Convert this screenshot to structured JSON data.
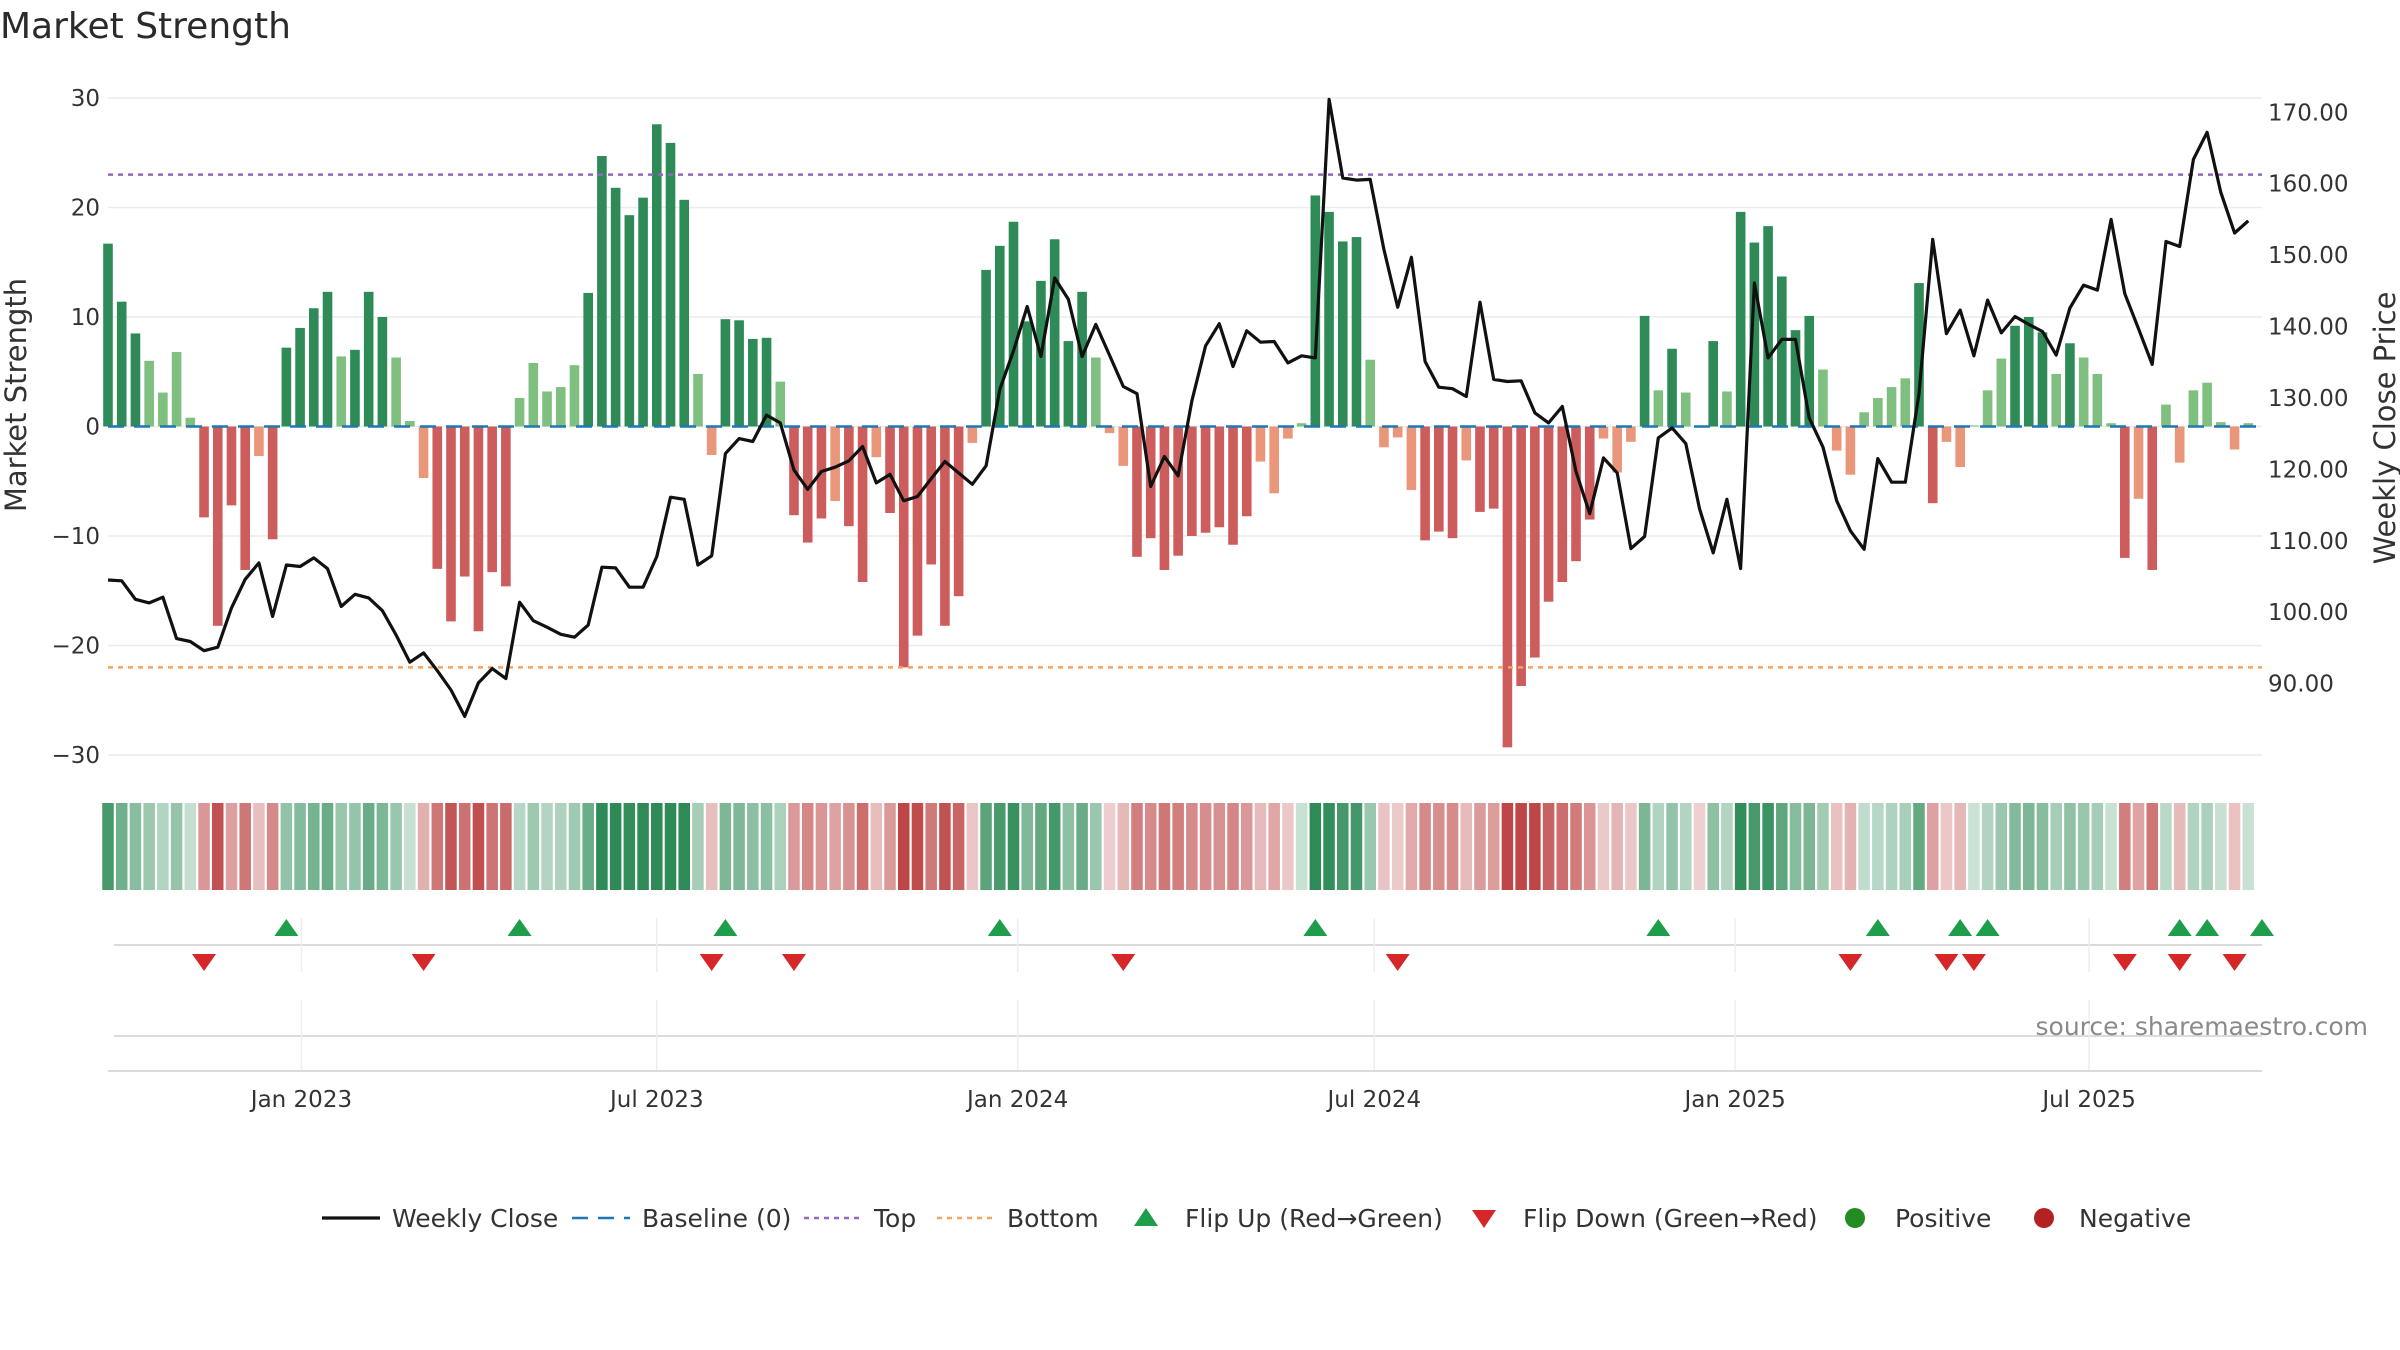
{
  "chart_data": {
    "type": "bar",
    "title": "Market Strength",
    "ylabel_left": "Market Strength",
    "ylabel_right": "Weekly Close Price",
    "ylim_left": [
      -30,
      30
    ],
    "ylim_right": [
      80,
      172
    ],
    "yticks_left": [
      30,
      20,
      10,
      0,
      -10,
      -20,
      -30
    ],
    "ytick_labels_left": [
      "30",
      "20",
      "10",
      "0",
      "−10",
      "−20",
      "−30"
    ],
    "yticks_right": [
      170,
      160,
      150,
      140,
      130,
      120,
      110,
      100,
      90
    ],
    "ytick_labels_right": [
      "170.00",
      "160.00",
      "150.00",
      "140.00",
      "130.00",
      "120.00",
      "110.00",
      "100.00",
      "90.00"
    ],
    "x_range_weeks": [
      0,
      157
    ],
    "date_ticks": [
      {
        "label": "Jan 2023",
        "week": 14.1
      },
      {
        "label": "Jul 2023",
        "week": 40
      },
      {
        "label": "Jan 2024",
        "week": 66.3
      },
      {
        "label": "Jul 2024",
        "week": 92.3
      },
      {
        "label": "Jan 2025",
        "week": 118.6
      },
      {
        "label": "Jul 2025",
        "week": 144.4
      }
    ],
    "top_line": 23,
    "bottom_line": -22,
    "baseline": 0,
    "strength": [
      16.7,
      11.4,
      8.5,
      6,
      3.1,
      6.8,
      0.8,
      -8.3,
      -18.2,
      -7.2,
      -13.1,
      -2.7,
      -10.3,
      7.2,
      9,
      10.8,
      12.3,
      6.4,
      7,
      12.3,
      10,
      6.3,
      0.5,
      -4.7,
      -13,
      -17.8,
      -13.7,
      -18.7,
      -13.3,
      -14.6,
      2.6,
      5.8,
      3.2,
      3.6,
      5.6,
      12.2,
      24.7,
      21.8,
      19.3,
      20.9,
      27.6,
      25.9,
      20.7,
      4.8,
      -2.6,
      9.8,
      9.7,
      8,
      8.1,
      4.1,
      -8.1,
      -10.6,
      -8.4,
      -6.8,
      -9.1,
      -14.2,
      -2.8,
      -7.9,
      -22,
      -19.1,
      -12.6,
      -18.2,
      -15.5,
      -1.5,
      14.3,
      16.5,
      18.7,
      9.6,
      13.3,
      17.1,
      7.8,
      12.3,
      6.3,
      -0.6,
      -3.6,
      -11.9,
      -10.2,
      -13.1,
      -11.8,
      -10,
      -9.7,
      -9.2,
      -10.8,
      -8.2,
      -3.2,
      -6.1,
      -1.1,
      0.3,
      21.1,
      19.6,
      16.9,
      17.3,
      6.1,
      -1.9,
      -1,
      -5.8,
      -10.4,
      -9.6,
      -10.2,
      -3.1,
      -7.8,
      -7.5,
      -29.3,
      -23.7,
      -21.1,
      -16,
      -14.2,
      -12.3,
      -8.5,
      -1.1,
      -4.2,
      -1.4,
      10.1,
      3.3,
      7.1,
      3.1,
      -0.1,
      7.8,
      3.2,
      19.6,
      16.8,
      18.3,
      13.7,
      8.8,
      10.1,
      5.2,
      -2.2,
      -4.4,
      1.3,
      2.6,
      3.6,
      4.4,
      13.1,
      -7,
      -1.4,
      -3.7,
      0.1,
      3.3,
      6.2,
      9.2,
      10,
      8.6,
      4.8,
      7.6,
      6.3,
      4.8,
      0.3,
      -12,
      -6.6,
      -13.1,
      2,
      -3.3,
      3.3,
      4,
      0.4,
      -2.1,
      0.3
    ],
    "weekly_close": [
      104.5,
      104.4,
      101.8,
      101.3,
      102.1,
      96.3,
      95.9,
      94.6,
      95.1,
      100.6,
      104.6,
      106.9,
      99.4,
      106.6,
      106.4,
      107.6,
      106.1,
      100.8,
      102.5,
      102,
      100.2,
      96.8,
      93,
      94.3,
      91.8,
      89.1,
      85.4,
      90.1,
      92.1,
      90.7,
      101.4,
      98.8,
      97.9,
      96.9,
      96.5,
      98.2,
      106.3,
      106.2,
      103.5,
      103.5,
      107.8,
      116.1,
      115.8,
      106.6,
      107.9,
      122.2,
      124.3,
      123.9,
      127.6,
      126.5,
      119.9,
      117.2,
      119.7,
      120.3,
      121.2,
      123.2,
      118.1,
      119.3,
      115.6,
      116.2,
      118.7,
      121.1,
      119.5,
      117.9,
      120.5,
      131.2,
      136.6,
      142.8,
      135.8,
      146.8,
      143.8,
      135.8,
      140.3,
      136,
      131.6,
      130.6,
      117.6,
      121.8,
      119.1,
      129.6,
      137.3,
      140.4,
      134.4,
      139.4,
      137.8,
      137.9,
      134.9,
      135.9,
      135.6,
      171.8,
      160.8,
      160.5,
      160.6,
      150.8,
      142.7,
      149.7,
      135.1,
      131.5,
      131.3,
      130.2,
      143.4,
      132.6,
      132.3,
      132.4,
      127.9,
      126.5,
      128.8,
      119.7,
      113.8,
      121.6,
      119.5,
      108.9,
      110.6,
      124.4,
      125.8,
      123.6,
      114.5,
      108.3,
      115.8,
      106.1,
      146.1,
      135.6,
      138.2,
      138.2,
      127.2,
      123.1,
      115.6,
      111.4,
      108.8,
      121.5,
      118.2,
      118.2,
      130.6,
      152.2,
      139,
      142.3,
      135.9,
      143.7,
      139.1,
      141.4,
      140.3,
      139.3,
      136,
      142.6,
      145.8,
      145.1,
      155,
      144.6,
      139.7,
      134.7,
      151.9,
      151.2,
      163.4,
      167.2,
      158.8,
      153.1,
      154.8
    ],
    "flip_up_weeks": [
      13,
      30,
      45,
      65,
      88,
      113,
      129,
      135,
      137,
      151,
      153,
      157
    ],
    "flip_down_weeks": [
      7,
      23,
      44,
      50,
      74,
      94,
      127,
      134,
      136,
      147,
      151,
      155
    ],
    "legend": [
      {
        "label": "Weekly Close",
        "marker": "line"
      },
      {
        "label": "Baseline (0)",
        "marker": "dash"
      },
      {
        "label": "Top",
        "marker": "dotted-purple"
      },
      {
        "label": "Bottom",
        "marker": "dotted-orange"
      },
      {
        "label": "Flip Up (Red→Green)",
        "marker": "triangle-up"
      },
      {
        "label": "Flip Down (Green→Red)",
        "marker": "triangle-down"
      },
      {
        "label": "Positive",
        "marker": "circle-green"
      },
      {
        "label": "Negative",
        "marker": "circle-red"
      }
    ]
  },
  "source": "source: sharemaestro.com",
  "colors": {
    "pos_strong": "#2e8b57",
    "pos_weak": "#7fbf7f",
    "neg_strong": "#cd5c5c",
    "neg_weak": "#e9967a",
    "line": "#111111",
    "baseline": "#1f77b4",
    "top": "#9467bd",
    "bottom": "#f4a460",
    "flip_up": "#1e9e4a",
    "flip_down": "#d62728",
    "positive_dot": "#228b22",
    "negative_dot": "#b22222"
  }
}
